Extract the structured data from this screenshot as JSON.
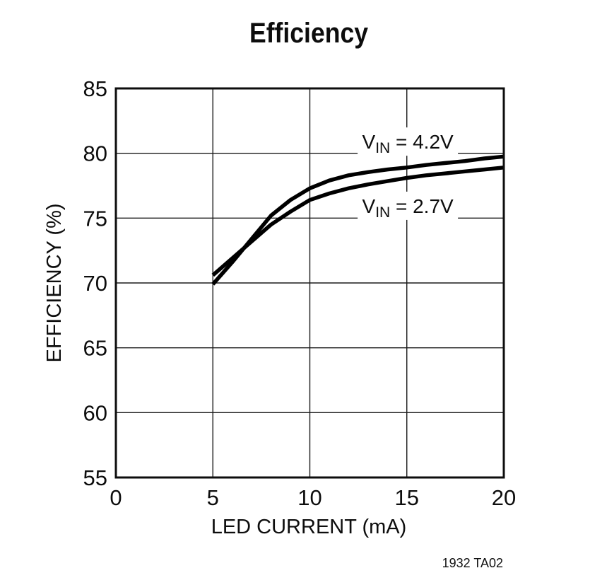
{
  "page": {
    "background": "#ffffff",
    "text_color": "#0d0d0d"
  },
  "footer": {
    "figure_id": "1932 TA02"
  },
  "chart_data": {
    "type": "line",
    "title": "Efficiency",
    "xlabel": "LED CURRENT (mA)",
    "ylabel": "EFFICIENCY (%)",
    "xlim": [
      0,
      20
    ],
    "ylim": [
      55,
      85
    ],
    "xticks": [
      0,
      5,
      10,
      15,
      20
    ],
    "yticks": [
      55,
      60,
      65,
      70,
      75,
      80,
      85
    ],
    "grid": true,
    "legend_position": "inline-annotations",
    "line_color": "#000000",
    "series": [
      {
        "name": "VIN = 4.2V",
        "label_parts": {
          "pre": "V",
          "sub": "IN",
          "post": " = 4.2V"
        },
        "label_pos": {
          "x": 15.05,
          "y": 80.9
        },
        "x": [
          5,
          6,
          7,
          8,
          9,
          10,
          11,
          12,
          13,
          14,
          15,
          16,
          17,
          18,
          19,
          20
        ],
        "y": [
          69.9,
          71.6,
          73.4,
          75.2,
          76.4,
          77.3,
          77.9,
          78.3,
          78.55,
          78.75,
          78.9,
          79.1,
          79.25,
          79.4,
          79.6,
          79.75
        ]
      },
      {
        "name": "VIN = 2.7V",
        "label_parts": {
          "pre": "V",
          "sub": "IN",
          "post": " = 2.7V"
        },
        "label_pos": {
          "x": 15.05,
          "y": 75.95
        },
        "x": [
          5,
          6,
          7,
          8,
          9,
          10,
          11,
          12,
          13,
          14,
          15,
          16,
          17,
          18,
          19,
          20
        ],
        "y": [
          70.6,
          71.9,
          73.2,
          74.5,
          75.5,
          76.4,
          76.9,
          77.3,
          77.6,
          77.85,
          78.1,
          78.3,
          78.45,
          78.6,
          78.75,
          78.9
        ]
      }
    ]
  }
}
